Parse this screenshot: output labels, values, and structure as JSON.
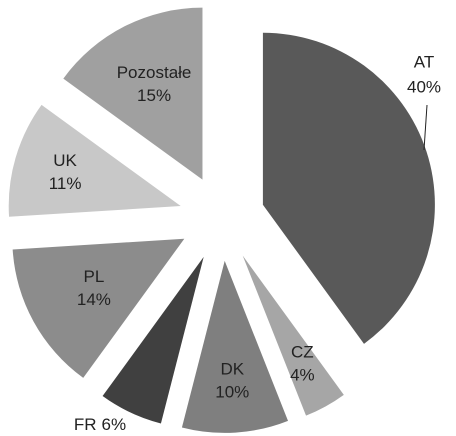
{
  "chart_data": {
    "type": "pie",
    "categories": [
      "AT",
      "CZ",
      "DK",
      "FR",
      "PL",
      "UK",
      "Pozostałe"
    ],
    "values": [
      40,
      4,
      10,
      6,
      14,
      11,
      15
    ],
    "value_labels": [
      "40%",
      "4%",
      "10%",
      "6%",
      "14%",
      "11%",
      "15%"
    ],
    "colors": [
      "#595959",
      "#a6a6a6",
      "#7f7f7f",
      "#404040",
      "#8c8c8c",
      "#c8c8c8",
      "#a0a0a0"
    ]
  }
}
